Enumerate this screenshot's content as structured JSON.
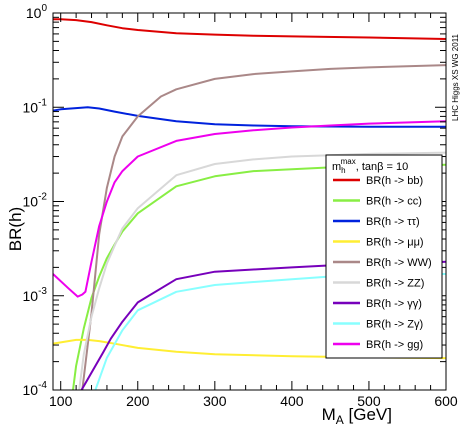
{
  "chart_data": {
    "type": "line",
    "title": "",
    "xlabel": "M",
    "xlabel_sub": "A",
    "xlabel_unit": " [GeV]",
    "ylabel": "BR(h)",
    "xlim": [
      90,
      600
    ],
    "ylim": [
      0.0001,
      1
    ],
    "yscale": "log",
    "x_ticks": [
      100,
      200,
      300,
      400,
      500,
      600
    ],
    "x_tick_labels": [
      "100",
      "200",
      "300",
      "400",
      "500",
      "600"
    ],
    "y_ticks": [
      0.0001,
      0.001,
      0.01,
      0.1,
      1
    ],
    "y_tick_labels": [
      {
        "base": "10",
        "exp": "-4"
      },
      {
        "base": "10",
        "exp": "-3"
      },
      {
        "base": "10",
        "exp": "-2"
      },
      {
        "base": "10",
        "exp": "-1"
      },
      {
        "base": "10",
        "exp": "0"
      }
    ],
    "watermark": "LHC Higgs XS WG 2011",
    "legend": {
      "placement": "right",
      "title_main": "m",
      "title_sub": "h",
      "title_sup": "max",
      "title_rest": ", tanβ = 10"
    },
    "series": [
      {
        "name": "BR(h -> bb)",
        "color": "#dd0000",
        "x": [
          90,
          100,
          120,
          140,
          160,
          180,
          200,
          250,
          300,
          350,
          400,
          500,
          600
        ],
        "y": [
          0.86,
          0.86,
          0.84,
          0.8,
          0.74,
          0.69,
          0.66,
          0.61,
          0.59,
          0.575,
          0.565,
          0.55,
          0.53
        ]
      },
      {
        "name": "BR(h -> cc)",
        "color": "#88ee44",
        "x": [
          116,
          120,
          130,
          140,
          150,
          160,
          170,
          180,
          200,
          250,
          300,
          350,
          400,
          450,
          500,
          600
        ],
        "y": [
          0.0001,
          0.00018,
          0.00045,
          0.00095,
          0.0016,
          0.0025,
          0.0035,
          0.0048,
          0.0075,
          0.0145,
          0.0185,
          0.021,
          0.022,
          0.023,
          0.0235,
          0.0245
        ]
      },
      {
        "name": "BR(h -> ττ)",
        "color": "#0022dd",
        "x": [
          90,
          100,
          120,
          135,
          150,
          170,
          200,
          250,
          300,
          350,
          400,
          500,
          600
        ],
        "y": [
          0.092,
          0.095,
          0.098,
          0.1,
          0.097,
          0.09,
          0.081,
          0.071,
          0.066,
          0.064,
          0.063,
          0.062,
          0.062
        ]
      },
      {
        "name": "BR(h -> μμ)",
        "color": "#ffee33",
        "x": [
          90,
          100,
          120,
          135,
          150,
          170,
          200,
          250,
          300,
          400,
          500,
          600
        ],
        "y": [
          0.00031,
          0.00032,
          0.00034,
          0.00034,
          0.00033,
          0.00031,
          0.00028,
          0.000255,
          0.00024,
          0.000228,
          0.000222,
          0.000218
        ]
      },
      {
        "name": "BR(h -> WW)",
        "color": "#aa8888",
        "x": [
          128,
          140,
          150,
          160,
          170,
          180,
          200,
          230,
          250,
          300,
          350,
          400,
          450,
          500,
          600
        ],
        "y": [
          0.0001,
          0.00065,
          0.0045,
          0.014,
          0.03,
          0.049,
          0.08,
          0.13,
          0.155,
          0.2,
          0.225,
          0.24,
          0.255,
          0.265,
          0.28
        ]
      },
      {
        "name": "BR(h -> ZZ)",
        "color": "#d8d8d8",
        "x": [
          124,
          130,
          140,
          150,
          160,
          170,
          180,
          200,
          250,
          300,
          350,
          400,
          450,
          500,
          600
        ],
        "y": [
          0.0001,
          0.00024,
          0.0006,
          0.0012,
          0.0022,
          0.0034,
          0.0052,
          0.0085,
          0.019,
          0.025,
          0.028,
          0.03,
          0.031,
          0.032,
          0.033
        ]
      },
      {
        "name": "BR(h -> γγ)",
        "color": "#7700bb",
        "x": [
          127,
          135,
          145,
          155,
          165,
          180,
          200,
          250,
          300,
          350,
          400,
          450,
          500,
          550,
          600
        ],
        "y": [
          0.0001,
          0.00013,
          0.00018,
          0.00025,
          0.00035,
          0.00053,
          0.00085,
          0.0015,
          0.0018,
          0.0019,
          0.002,
          0.0021,
          0.0022,
          0.0022,
          0.0023
        ]
      },
      {
        "name": "BR(h -> Zγ)",
        "color": "#88ffff",
        "x": [
          145,
          160,
          180,
          200,
          250,
          300,
          350,
          400,
          450,
          500,
          550,
          600
        ],
        "y": [
          0.0001,
          0.00022,
          0.00043,
          0.0007,
          0.0011,
          0.0013,
          0.0014,
          0.0015,
          0.0016,
          0.0016,
          0.0017,
          0.0017
        ]
      },
      {
        "name": "BR(h -> gg)",
        "color": "#ee00ee",
        "x": [
          90,
          110,
          122,
          128,
          132,
          140,
          150,
          160,
          170,
          180,
          200,
          250,
          300,
          350,
          400,
          450,
          500,
          600
        ],
        "y": [
          0.0017,
          0.0012,
          0.00098,
          0.00103,
          0.0011,
          0.0023,
          0.0055,
          0.01,
          0.016,
          0.021,
          0.03,
          0.044,
          0.052,
          0.057,
          0.061,
          0.064,
          0.067,
          0.071
        ]
      }
    ]
  }
}
